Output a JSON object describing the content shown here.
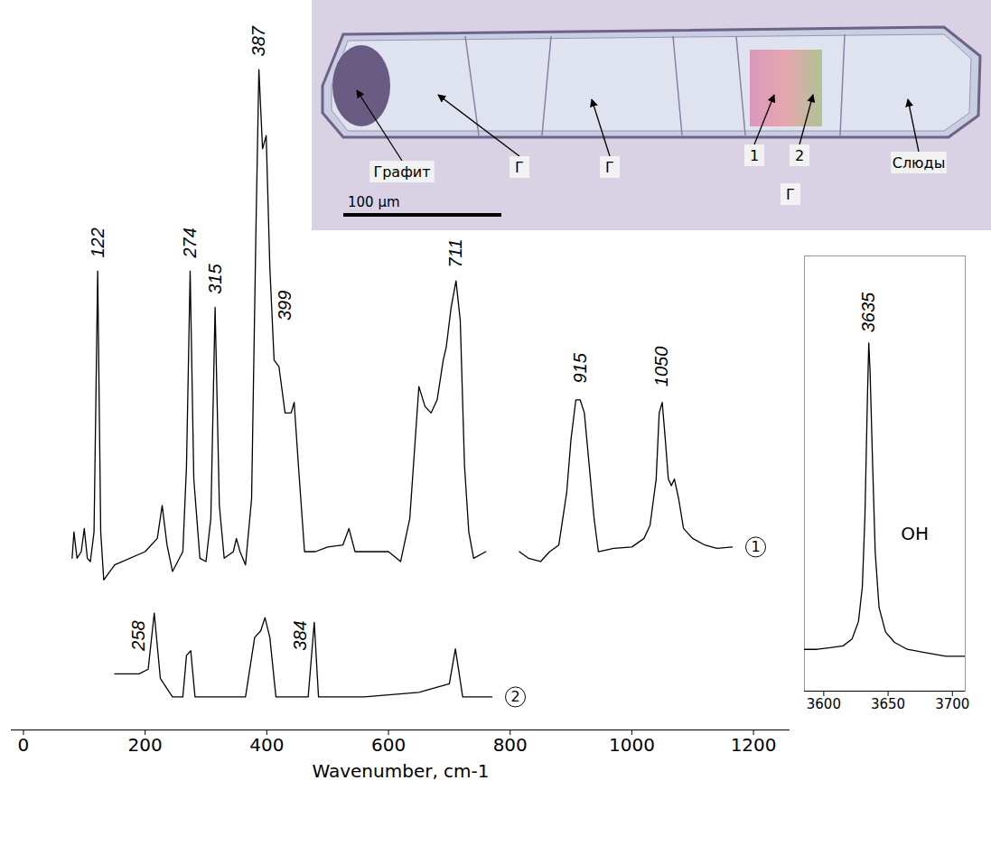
{
  "chart_data": [
    {
      "type": "line",
      "x_label": "Wavenumber, cm-1",
      "xlim": [
        -20,
        1260
      ],
      "xticks": [
        0,
        200,
        400,
        600,
        800,
        1000,
        1200
      ],
      "ylim": [
        0,
        105
      ],
      "tick_labels": "x",
      "series": [
        {
          "name": "1",
          "color": "#000000",
          "x": [
            80,
            83,
            88,
            95,
            100,
            105,
            110,
            116,
            122,
            127,
            132,
            150,
            200,
            220,
            228,
            236,
            245,
            262,
            268,
            274,
            280,
            290,
            300,
            308,
            315,
            322,
            330,
            345,
            350,
            356,
            365,
            375,
            382,
            387,
            393,
            399,
            405,
            412,
            420,
            430,
            440,
            445,
            452,
            462,
            480,
            500,
            525,
            535,
            545,
            580,
            600,
            620,
            635,
            650,
            660,
            670,
            680,
            690,
            695,
            703,
            711,
            718,
            725,
            732,
            740,
            760,
            788,
            815,
            830,
            850,
            865,
            880,
            893,
            900,
            908,
            915,
            922,
            930,
            938,
            945,
            970,
            1000,
            1020,
            1030,
            1040,
            1045,
            1050,
            1055,
            1060,
            1065,
            1070,
            1077,
            1085,
            1100,
            1120,
            1140,
            1165
          ],
          "values": [
            26,
            30,
            26,
            27,
            30.5,
            26,
            25.5,
            30,
            69.5,
            30,
            22.7,
            25,
            27,
            29,
            34,
            28,
            24,
            27,
            40,
            69.5,
            38,
            26,
            25.5,
            32,
            64,
            34,
            26,
            27,
            29,
            27,
            25,
            35,
            75,
            100,
            88,
            90,
            70,
            56,
            55,
            48,
            48,
            49.6,
            40,
            27,
            27,
            27.7,
            28,
            30.5,
            27,
            27,
            27,
            25.5,
            32,
            52,
            49,
            48,
            50,
            56,
            58,
            64,
            68,
            62,
            40,
            30,
            26,
            27,
            null,
            27,
            26,
            25.5,
            27,
            28,
            36,
            44,
            50,
            50,
            48,
            40,
            32,
            27,
            27.5,
            27.7,
            29,
            31,
            38,
            48,
            49.6,
            44,
            38,
            37,
            38,
            35,
            30.5,
            29,
            28,
            27.5,
            27.7
          ]
        },
        {
          "name": "2",
          "color": "#000000",
          "x": [
            150,
            190,
            205,
            215,
            225,
            245,
            262,
            268,
            275,
            282,
            365,
            380,
            390,
            397,
            405,
            415,
            468,
            478,
            485,
            560,
            650,
            700,
            710,
            722,
            770
          ],
          "values": [
            8.5,
            8.5,
            9.2,
            17.7,
            7.8,
            5,
            5,
            11.3,
            12,
            5,
            5,
            14,
            15,
            17,
            14,
            5,
            5,
            16.3,
            5,
            5,
            5.7,
            7,
            12.3,
            5,
            5
          ]
        }
      ],
      "annotations": [
        {
          "text": "122",
          "x": 122,
          "y": 71.5
        },
        {
          "text": "274",
          "x": 274,
          "y": 71.5
        },
        {
          "text": "315",
          "x": 315,
          "y": 66
        },
        {
          "text": "387",
          "x": 387,
          "y": 102
        },
        {
          "text": "399",
          "x": 430,
          "y": 62
        },
        {
          "text": "711",
          "x": 711,
          "y": 70
        },
        {
          "text": "915",
          "x": 915,
          "y": 52.5
        },
        {
          "text": "1050",
          "x": 1050,
          "y": 52
        },
        {
          "text": "258",
          "x": 190,
          "y": 12
        },
        {
          "text": "384",
          "x": 455,
          "y": 12
        }
      ]
    },
    {
      "type": "line",
      "xlim": [
        3585,
        3710
      ],
      "xticks": [
        3600,
        3650,
        3700
      ],
      "ylim": [
        0,
        125
      ],
      "tick_labels": "x",
      "series": [
        {
          "color": "#000000",
          "x": [
            3585,
            3595,
            3605,
            3615,
            3622,
            3627,
            3630,
            3632,
            3634,
            3635,
            3636,
            3638,
            3640,
            3643,
            3648,
            3655,
            3665,
            3680,
            3695,
            3710
          ],
          "values": [
            12,
            12,
            12.5,
            13,
            15,
            20,
            30,
            50,
            85,
            100,
            92,
            65,
            40,
            24,
            17,
            14,
            12,
            11,
            10,
            10
          ]
        }
      ],
      "annotations": [
        {
          "text": "3635",
          "x": 3635,
          "y": 103
        },
        {
          "text": "OH",
          "x": 3660,
          "y": 45
        }
      ]
    }
  ],
  "photo_inset": {
    "labels": [
      "Графит",
      "Г",
      "Г",
      "1",
      "2",
      "Г",
      "Слюды"
    ],
    "scale_bar": "100 μm"
  }
}
